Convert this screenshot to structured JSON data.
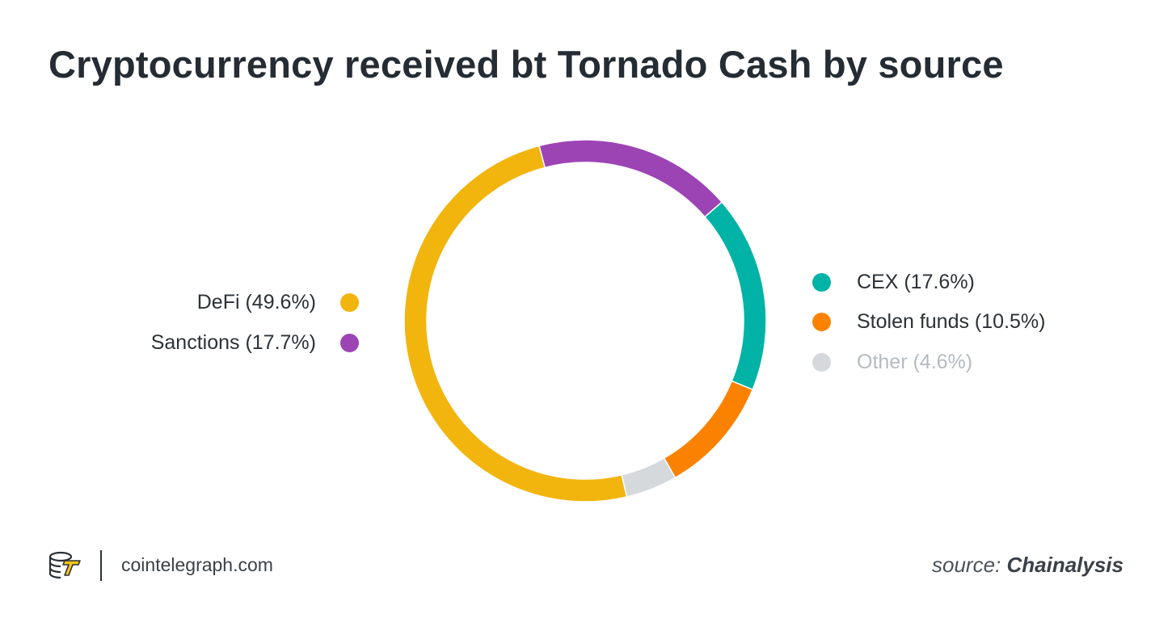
{
  "title": "Cryptocurrency received bt Tornado Cash by source",
  "chart_data": {
    "type": "pie",
    "donut": true,
    "slices": [
      {
        "label": "DeFi (49.6%)",
        "name": "DeFi",
        "value": 49.6,
        "color": "#f2b50e"
      },
      {
        "label": "Sanctions (17.7%)",
        "name": "Sanctions",
        "value": 17.7,
        "color": "#9d44b5"
      },
      {
        "label": "CEX (17.6%)",
        "name": "CEX",
        "value": 17.6,
        "color": "#00b3a6"
      },
      {
        "label": "Stolen funds (10.5%)",
        "name": "Stolen funds",
        "value": 10.5,
        "color": "#fb8200"
      },
      {
        "label": "Other (4.6%)",
        "name": "Other",
        "value": 4.6,
        "color": "#d5d9dc"
      }
    ],
    "legend_left": [
      "DeFi",
      "Sanctions"
    ],
    "legend_right": [
      "CEX",
      "Stolen funds",
      "Other"
    ]
  },
  "footer": {
    "site": "cointelegraph.com",
    "source_prefix": "source: ",
    "source_name": "Chainalysis",
    "logo_icon": "cointelegraph-logo-icon"
  }
}
